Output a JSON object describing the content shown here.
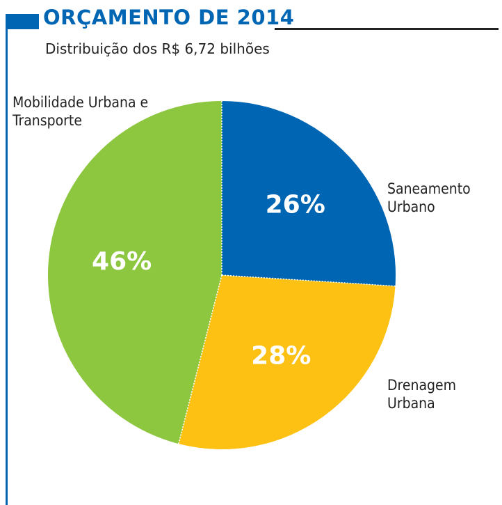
{
  "chart_data": {
    "type": "pie",
    "title": "ORÇAMENTO DE 2014",
    "subtitle": "Distribuição dos R$ 6,72 bilhões",
    "categories": [
      "Saneamento Urbano",
      "Drenagem Urbana",
      "Mobilidade Urbana e Transporte"
    ],
    "values": [
      26,
      28,
      46
    ],
    "value_labels": [
      "26%",
      "28%",
      "46%"
    ],
    "colors": [
      "#0066b3",
      "#fdc113",
      "#8dc63f"
    ]
  }
}
